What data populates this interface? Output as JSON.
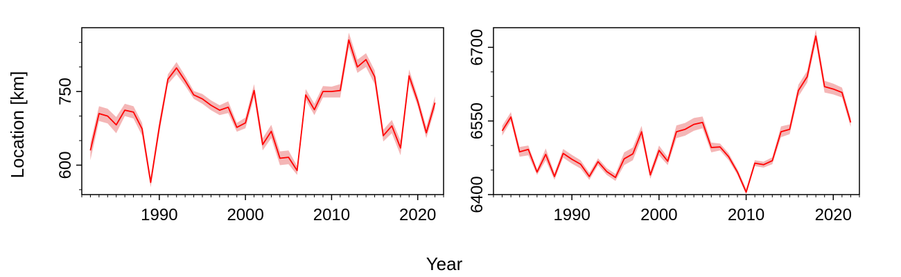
{
  "chart_data": [
    {
      "type": "line",
      "panel": "left",
      "xlim": [
        1981,
        2023
      ],
      "ylim": [
        540,
        880
      ],
      "xticks": [
        1990,
        2000,
        2010,
        2020
      ],
      "yticks": [
        600,
        750
      ],
      "ylabel": "Location [km]",
      "color": "#ff0000",
      "band_color": "#f4b6b6",
      "series": [
        {
          "x": [
            1982,
            1983,
            1984,
            1985,
            1986,
            1987,
            1988,
            1989,
            1990,
            1991,
            1992,
            1993,
            1994,
            1995,
            1996,
            1997,
            1998,
            1999,
            2000,
            2001,
            2002,
            2003,
            2004,
            2005,
            2006,
            2007,
            2008,
            2009,
            2010,
            2011,
            2012,
            2013,
            2014,
            2015,
            2016,
            2017,
            2018,
            2019,
            2020,
            2021,
            2022
          ],
          "y": [
            630,
            705,
            700,
            682,
            712,
            708,
            674,
            565,
            678,
            775,
            798,
            772,
            743,
            735,
            722,
            712,
            718,
            677,
            686,
            752,
            642,
            669,
            614,
            616,
            589,
            743,
            713,
            750,
            750,
            752,
            855,
            800,
            815,
            780,
            660,
            680,
            635,
            782,
            730,
            666,
            727
          ],
          "lower": [
            610,
            690,
            685,
            665,
            700,
            695,
            660,
            555,
            665,
            765,
            785,
            762,
            735,
            725,
            712,
            702,
            706,
            668,
            675,
            738,
            630,
            655,
            600,
            602,
            580,
            733,
            702,
            738,
            738,
            738,
            840,
            788,
            800,
            765,
            648,
            665,
            620,
            770,
            720,
            655,
            715
          ],
          "upper": [
            645,
            720,
            715,
            698,
            725,
            720,
            686,
            575,
            690,
            785,
            810,
            782,
            751,
            745,
            732,
            722,
            730,
            686,
            697,
            765,
            655,
            682,
            628,
            630,
            598,
            755,
            725,
            761,
            760,
            765,
            870,
            815,
            828,
            793,
            672,
            692,
            650,
            795,
            740,
            678,
            740
          ]
        }
      ]
    },
    {
      "type": "line",
      "panel": "right",
      "xlim": [
        1981,
        2023
      ],
      "ylim": [
        6400,
        6740
      ],
      "xticks": [
        1990,
        2000,
        2010,
        2020
      ],
      "yticks": [
        6400,
        6550,
        6700
      ],
      "color": "#ff0000",
      "band_color": "#f4b6b6",
      "series": [
        {
          "x": [
            1982,
            1983,
            1984,
            1985,
            1986,
            1987,
            1988,
            1989,
            1990,
            1991,
            1992,
            1993,
            1994,
            1995,
            1996,
            1997,
            1998,
            1999,
            2000,
            2001,
            2002,
            2003,
            2004,
            2005,
            2006,
            2007,
            2008,
            2009,
            2010,
            2011,
            2012,
            2013,
            2014,
            2015,
            2016,
            2017,
            2018,
            2019,
            2020,
            2021,
            2022
          ],
          "y": [
            6530,
            6558,
            6487,
            6492,
            6446,
            6482,
            6437,
            6484,
            6472,
            6462,
            6437,
            6467,
            6447,
            6435,
            6473,
            6483,
            6528,
            6440,
            6490,
            6468,
            6528,
            6533,
            6543,
            6547,
            6496,
            6497,
            6477,
            6446,
            6405,
            6464,
            6461,
            6469,
            6528,
            6533,
            6612,
            6640,
            6723,
            6620,
            6615,
            6608,
            6547
          ],
          "lower": [
            6520,
            6550,
            6477,
            6480,
            6440,
            6470,
            6430,
            6475,
            6463,
            6453,
            6430,
            6460,
            6440,
            6428,
            6460,
            6470,
            6515,
            6432,
            6480,
            6460,
            6515,
            6520,
            6530,
            6535,
            6486,
            6490,
            6470,
            6440,
            6400,
            6458,
            6455,
            6462,
            6517,
            6523,
            6600,
            6628,
            6710,
            6608,
            6604,
            6598,
            6538
          ],
          "upper": [
            6540,
            6568,
            6497,
            6500,
            6452,
            6494,
            6444,
            6493,
            6481,
            6470,
            6444,
            6474,
            6454,
            6442,
            6486,
            6496,
            6540,
            6448,
            6500,
            6476,
            6541,
            6546,
            6556,
            6559,
            6506,
            6504,
            6484,
            6452,
            6412,
            6470,
            6467,
            6476,
            6539,
            6543,
            6624,
            6652,
            6736,
            6632,
            6626,
            6618,
            6556
          ]
        }
      ]
    }
  ],
  "xlabel": "Year"
}
